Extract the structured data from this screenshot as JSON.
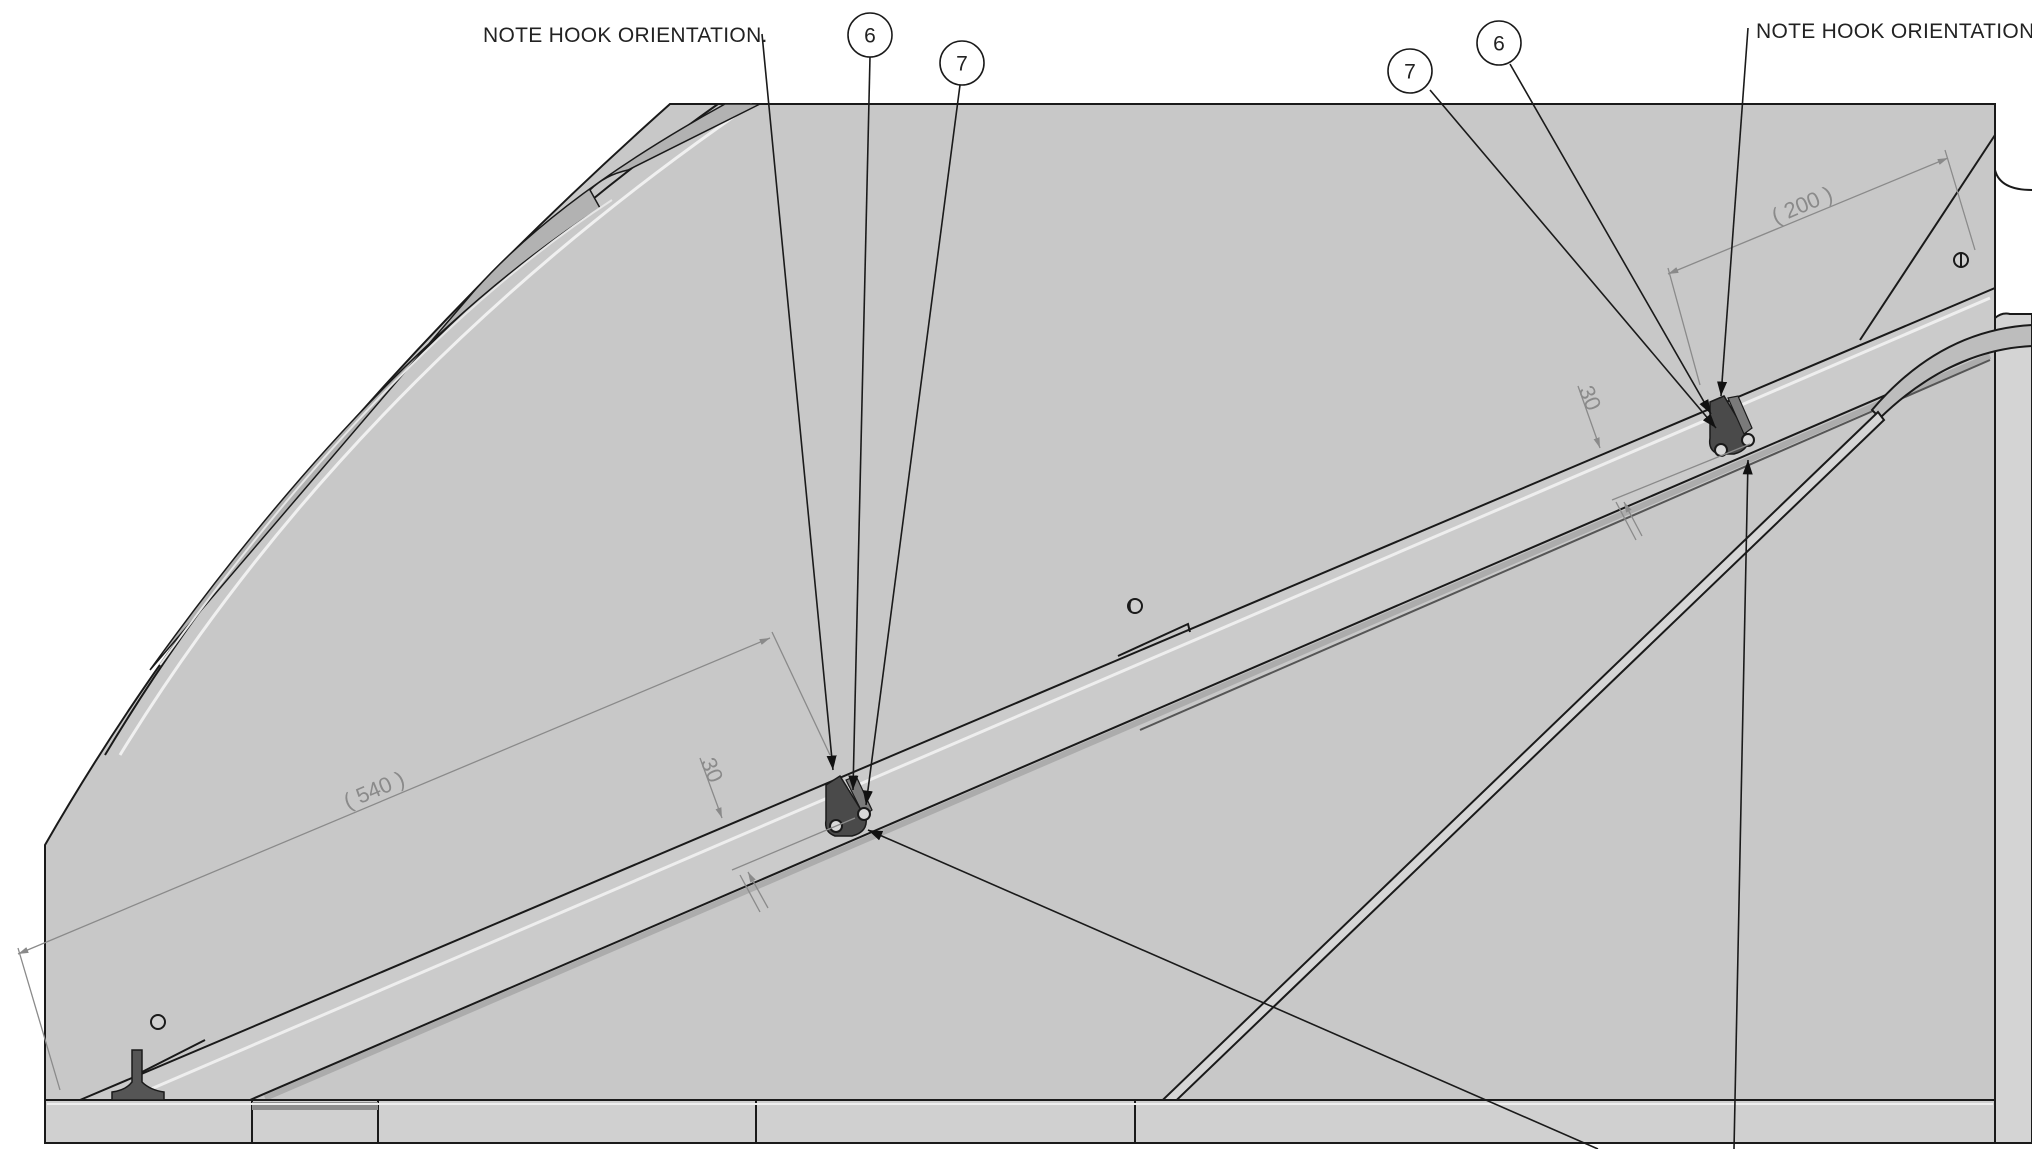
{
  "notes": [
    {
      "id": "note-left",
      "text": "NOTE HOOK ORIENTATION."
    },
    {
      "id": "note-right",
      "text": "NOTE HOOK ORIENTATION."
    }
  ],
  "balloons": [
    {
      "id": "balloon-6-left",
      "label": "6"
    },
    {
      "id": "balloon-7-left",
      "label": "7"
    },
    {
      "id": "balloon-7-right",
      "label": "7"
    },
    {
      "id": "balloon-6-right",
      "label": "6"
    }
  ],
  "dimensions": [
    {
      "id": "dim-540",
      "text": "( 540 )"
    },
    {
      "id": "dim-30-left",
      "text": "30"
    },
    {
      "id": "dim-200",
      "text": "( 200 )"
    },
    {
      "id": "dim-30-right",
      "text": "30"
    }
  ],
  "colors": {
    "panel_fill": "#c8c8c8",
    "edge_stroke": "#1a1a1a",
    "dimension": "#8a8a8a",
    "background": "#ffffff"
  }
}
